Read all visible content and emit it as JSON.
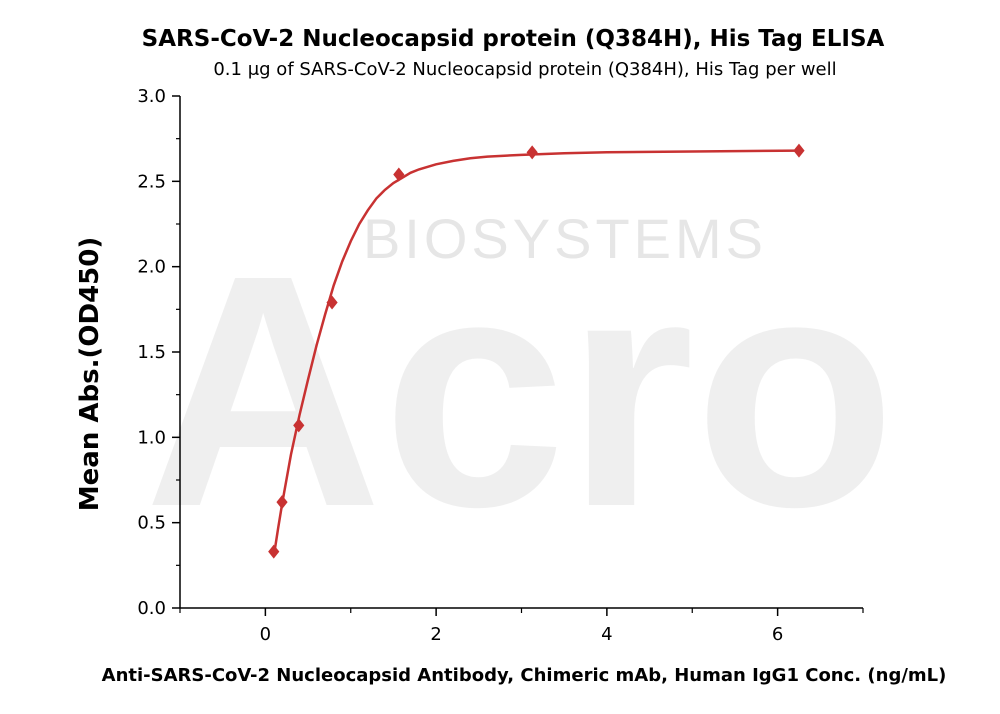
{
  "chart_data": {
    "type": "scatter",
    "title": "SARS-CoV-2 Nucleocapsid protein (Q384H), His Tag ELISA",
    "subtitle": "0.1 μg of SARS-CoV-2 Nucleocapsid protein (Q384H), His Tag per well",
    "xlabel": "Anti-SARS-CoV-2 Nucleocapsid Antibody, Chimeric mAb, Human IgG1 Conc. (ng/mL)",
    "ylabel": "Mean Abs.(OD450)",
    "xlim": [
      -1,
      7
    ],
    "ylim": [
      0,
      3.0
    ],
    "x_ticks": [
      0,
      2,
      4,
      6
    ],
    "x_tick_labels": [
      "0",
      "2",
      "4",
      "6"
    ],
    "y_ticks": [
      0,
      0.5,
      1.0,
      1.5,
      2.0,
      2.5,
      3.0
    ],
    "y_tick_labels": [
      "0.0",
      "0.5",
      "1.0",
      "1.5",
      "2.0",
      "2.5",
      "3.0"
    ],
    "grid": false,
    "series": [
      {
        "marker": "diamond",
        "color": "#c83232",
        "x": [
          0.098,
          0.195,
          0.391,
          0.781,
          1.563,
          3.125,
          6.25
        ],
        "y": [
          0.33,
          0.62,
          1.07,
          1.79,
          2.54,
          2.67,
          2.68
        ]
      }
    ],
    "fit_curve": {
      "color": "#c83232",
      "x": [
        0.098,
        0.15,
        0.2,
        0.3,
        0.4,
        0.5,
        0.6,
        0.7,
        0.8,
        0.9,
        1.0,
        1.1,
        1.2,
        1.3,
        1.4,
        1.5,
        1.6,
        1.7,
        1.8,
        2.0,
        2.2,
        2.4,
        2.6,
        2.8,
        3.0,
        3.5,
        4.0,
        5.0,
        6.25
      ],
      "y": [
        0.3,
        0.47,
        0.62,
        0.9,
        1.13,
        1.34,
        1.54,
        1.72,
        1.89,
        2.03,
        2.15,
        2.25,
        2.33,
        2.4,
        2.45,
        2.49,
        2.52,
        2.55,
        2.57,
        2.6,
        2.62,
        2.635,
        2.645,
        2.65,
        2.655,
        2.665,
        2.67,
        2.675,
        2.68
      ]
    }
  },
  "watermark": {
    "brand": "Acro",
    "sub": "BIOSYSTEMS"
  }
}
